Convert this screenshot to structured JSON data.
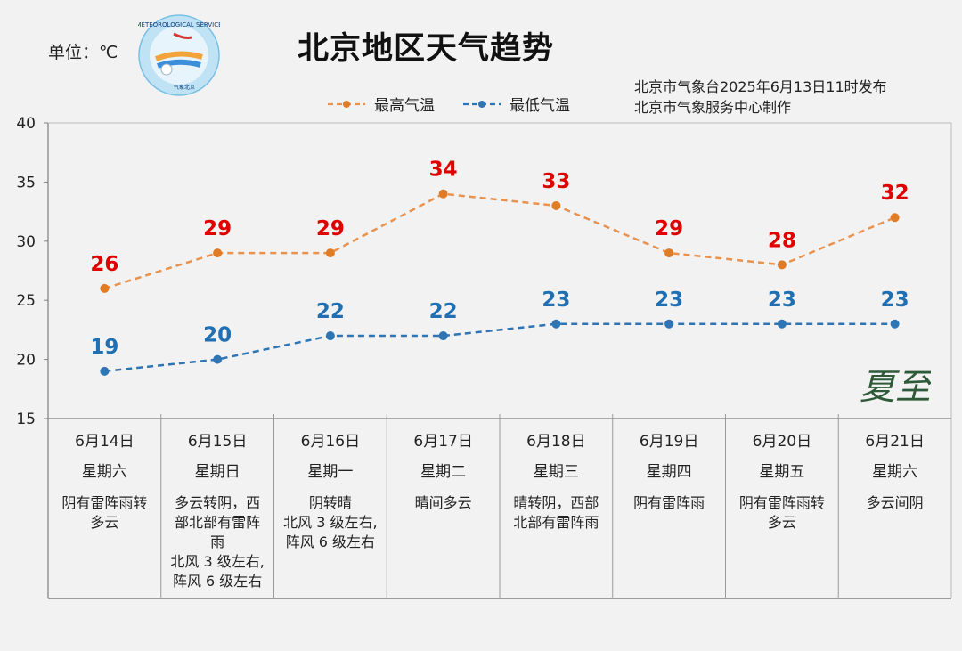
{
  "header": {
    "unit": "单位：℃",
    "title": "北京地区天气趋势",
    "source_line1": "北京市气象台2025年6月13日11时发布",
    "source_line2": "北京市气象服务中心制作",
    "logo_text": "METEOROLOGICAL SERVICE",
    "logo_subtext": "气象北京"
  },
  "watermark": "夏至",
  "colors": {
    "high_line": "#e8924e",
    "low_line": "#2e75b6",
    "high_label": "#e00000",
    "low_label": "#1f6fb2",
    "grid": "#7f7f7f"
  },
  "chart_data": {
    "type": "line",
    "categories": [
      "6月14日",
      "6月15日",
      "6月16日",
      "6月17日",
      "6月18日",
      "6月19日",
      "6月20日",
      "6月21日"
    ],
    "series": [
      {
        "name": "最高气温",
        "values": [
          26,
          29,
          29,
          34,
          33,
          29,
          28,
          32
        ]
      },
      {
        "name": "最低气温",
        "values": [
          19,
          20,
          22,
          22,
          23,
          23,
          23,
          23
        ]
      }
    ],
    "ylim": [
      15,
      40
    ],
    "yticks": [
      15,
      20,
      25,
      30,
      35,
      40
    ],
    "legend": "top-center",
    "grid": false
  },
  "days": [
    {
      "date": "6月14日",
      "weekday": "星期六",
      "weather": [
        "阴有雷阵雨转",
        "多云"
      ]
    },
    {
      "date": "6月15日",
      "weekday": "星期日",
      "weather": [
        "多云转阴，西",
        "部北部有雷阵",
        "雨",
        "北风 3 级左右,",
        "阵风 6 级左右"
      ]
    },
    {
      "date": "6月16日",
      "weekday": "星期一",
      "weather": [
        "阴转晴",
        "北风 3 级左右,",
        "阵风 6 级左右"
      ]
    },
    {
      "date": "6月17日",
      "weekday": "星期二",
      "weather": [
        "晴间多云"
      ]
    },
    {
      "date": "6月18日",
      "weekday": "星期三",
      "weather": [
        "晴转阴，西部",
        "北部有雷阵雨"
      ]
    },
    {
      "date": "6月19日",
      "weekday": "星期四",
      "weather": [
        "阴有雷阵雨"
      ]
    },
    {
      "date": "6月20日",
      "weekday": "星期五",
      "weather": [
        "阴有雷阵雨转",
        "多云"
      ]
    },
    {
      "date": "6月21日",
      "weekday": "星期六",
      "weather": [
        "多云间阴"
      ]
    }
  ]
}
